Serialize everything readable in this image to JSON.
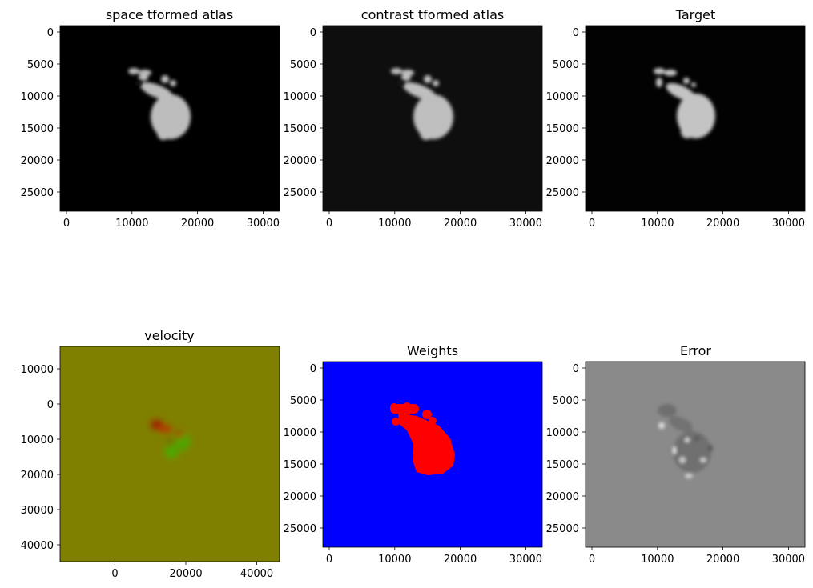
{
  "chart_data": [
    {
      "type": "heatmap",
      "title": "space tformed atlas",
      "image_content": "grayscale-brain-slice",
      "background_color": "#000000",
      "xlim": [
        -1000,
        33000
      ],
      "ylim": [
        28000,
        -1000
      ],
      "x_ticks": [
        0,
        10000,
        20000,
        30000
      ],
      "y_ticks": [
        0,
        5000,
        10000,
        15000,
        20000,
        25000
      ]
    },
    {
      "type": "heatmap",
      "title": "contrast tformed atlas",
      "image_content": "grayscale-brain-slice",
      "background_color": "#0e0e0e",
      "xlim": [
        -1000,
        33000
      ],
      "ylim": [
        28000,
        -1000
      ],
      "x_ticks": [
        0,
        10000,
        20000,
        30000
      ],
      "y_ticks": [
        0,
        5000,
        10000,
        15000,
        20000,
        25000
      ]
    },
    {
      "type": "heatmap",
      "title": "Target",
      "image_content": "grayscale-brain-slice",
      "background_color": "#020202",
      "xlim": [
        -1000,
        33000
      ],
      "ylim": [
        28000,
        -1000
      ],
      "x_ticks": [
        0,
        10000,
        20000,
        30000
      ],
      "y_ticks": [
        0,
        5000,
        10000,
        15000,
        20000,
        25000
      ]
    },
    {
      "type": "heatmap",
      "title": "velocity",
      "image_content": "rgb-velocity-field",
      "background_color": "#808000",
      "xlim": [
        -15500,
        46500
      ],
      "ylim": [
        44000,
        -16500
      ],
      "x_ticks": [
        0,
        20000,
        40000
      ],
      "y_ticks": [
        -10000,
        0,
        10000,
        20000,
        30000,
        40000
      ]
    },
    {
      "type": "heatmap",
      "title": "Weights",
      "image_content": "binary-mask",
      "background_color": "#0000ff",
      "mask_color": "#ff0000",
      "xlim": [
        -1000,
        33000
      ],
      "ylim": [
        28000,
        -1000
      ],
      "x_ticks": [
        0,
        10000,
        20000,
        30000
      ],
      "y_ticks": [
        0,
        5000,
        10000,
        15000,
        20000,
        25000
      ]
    },
    {
      "type": "heatmap",
      "title": "Error",
      "image_content": "grayscale-error-map",
      "background_color": "#8a8a8a",
      "xlim": [
        -1000,
        33000
      ],
      "ylim": [
        28000,
        -1000
      ],
      "x_ticks": [
        0,
        10000,
        20000,
        30000
      ],
      "y_ticks": [
        0,
        5000,
        10000,
        15000,
        20000,
        25000
      ]
    }
  ]
}
